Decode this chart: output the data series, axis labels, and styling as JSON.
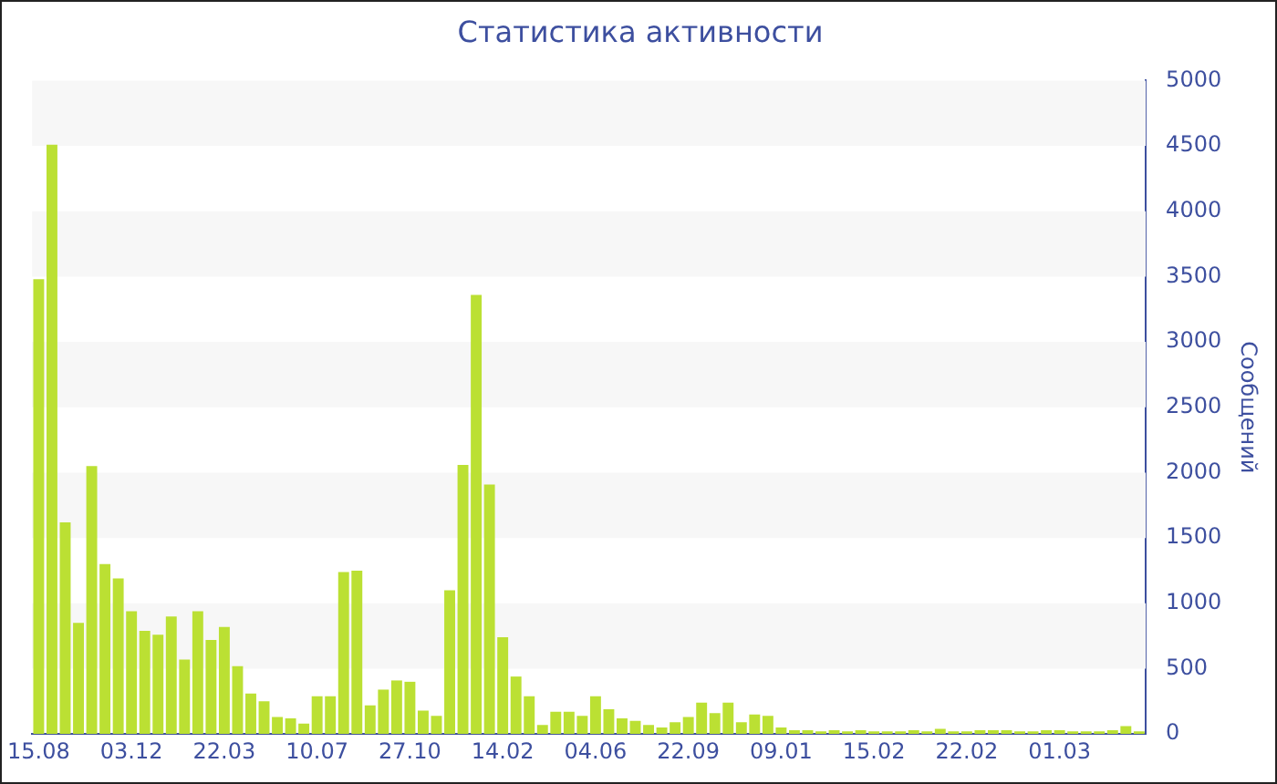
{
  "chart_data": {
    "type": "bar",
    "title": "Статистика активности",
    "ylabel": "Сообщений",
    "categories": [
      "15.08",
      null,
      null,
      null,
      null,
      null,
      null,
      "03.12",
      null,
      null,
      null,
      null,
      null,
      null,
      "22.03",
      null,
      null,
      null,
      null,
      null,
      null,
      "10.07",
      null,
      null,
      null,
      null,
      null,
      null,
      "27.10",
      null,
      null,
      null,
      null,
      null,
      null,
      "14.02",
      null,
      null,
      null,
      null,
      null,
      null,
      "04.06",
      null,
      null,
      null,
      null,
      null,
      null,
      "22.09",
      null,
      null,
      null,
      null,
      null,
      null,
      "09.01",
      null,
      null,
      null,
      null,
      null,
      null,
      "15.02",
      null,
      null,
      null,
      null,
      null,
      null,
      "22.02",
      null,
      null,
      null,
      null,
      null,
      null,
      "01.03",
      null,
      null,
      null,
      null,
      null,
      null
    ],
    "values": [
      3480,
      4510,
      1620,
      850,
      2050,
      1300,
      1190,
      940,
      790,
      760,
      900,
      570,
      940,
      720,
      820,
      520,
      310,
      250,
      130,
      120,
      80,
      290,
      290,
      1240,
      1250,
      220,
      340,
      410,
      400,
      180,
      140,
      1100,
      2060,
      3360,
      1910,
      740,
      440,
      290,
      70,
      170,
      170,
      140,
      290,
      190,
      120,
      100,
      70,
      50,
      90,
      130,
      240,
      160,
      240,
      90,
      150,
      140,
      50,
      30,
      30,
      20,
      30,
      20,
      30,
      20,
      20,
      20,
      30,
      20,
      40,
      20,
      20,
      30,
      30,
      30,
      20,
      20,
      30,
      30,
      20,
      20,
      20,
      30,
      60,
      20
    ],
    "color": "#bbe033",
    "ylim": [
      0,
      5000
    ],
    "yticks": [
      0,
      500,
      1000,
      1500,
      2000,
      2500,
      3000,
      3500,
      4000,
      4500,
      5000
    ]
  }
}
